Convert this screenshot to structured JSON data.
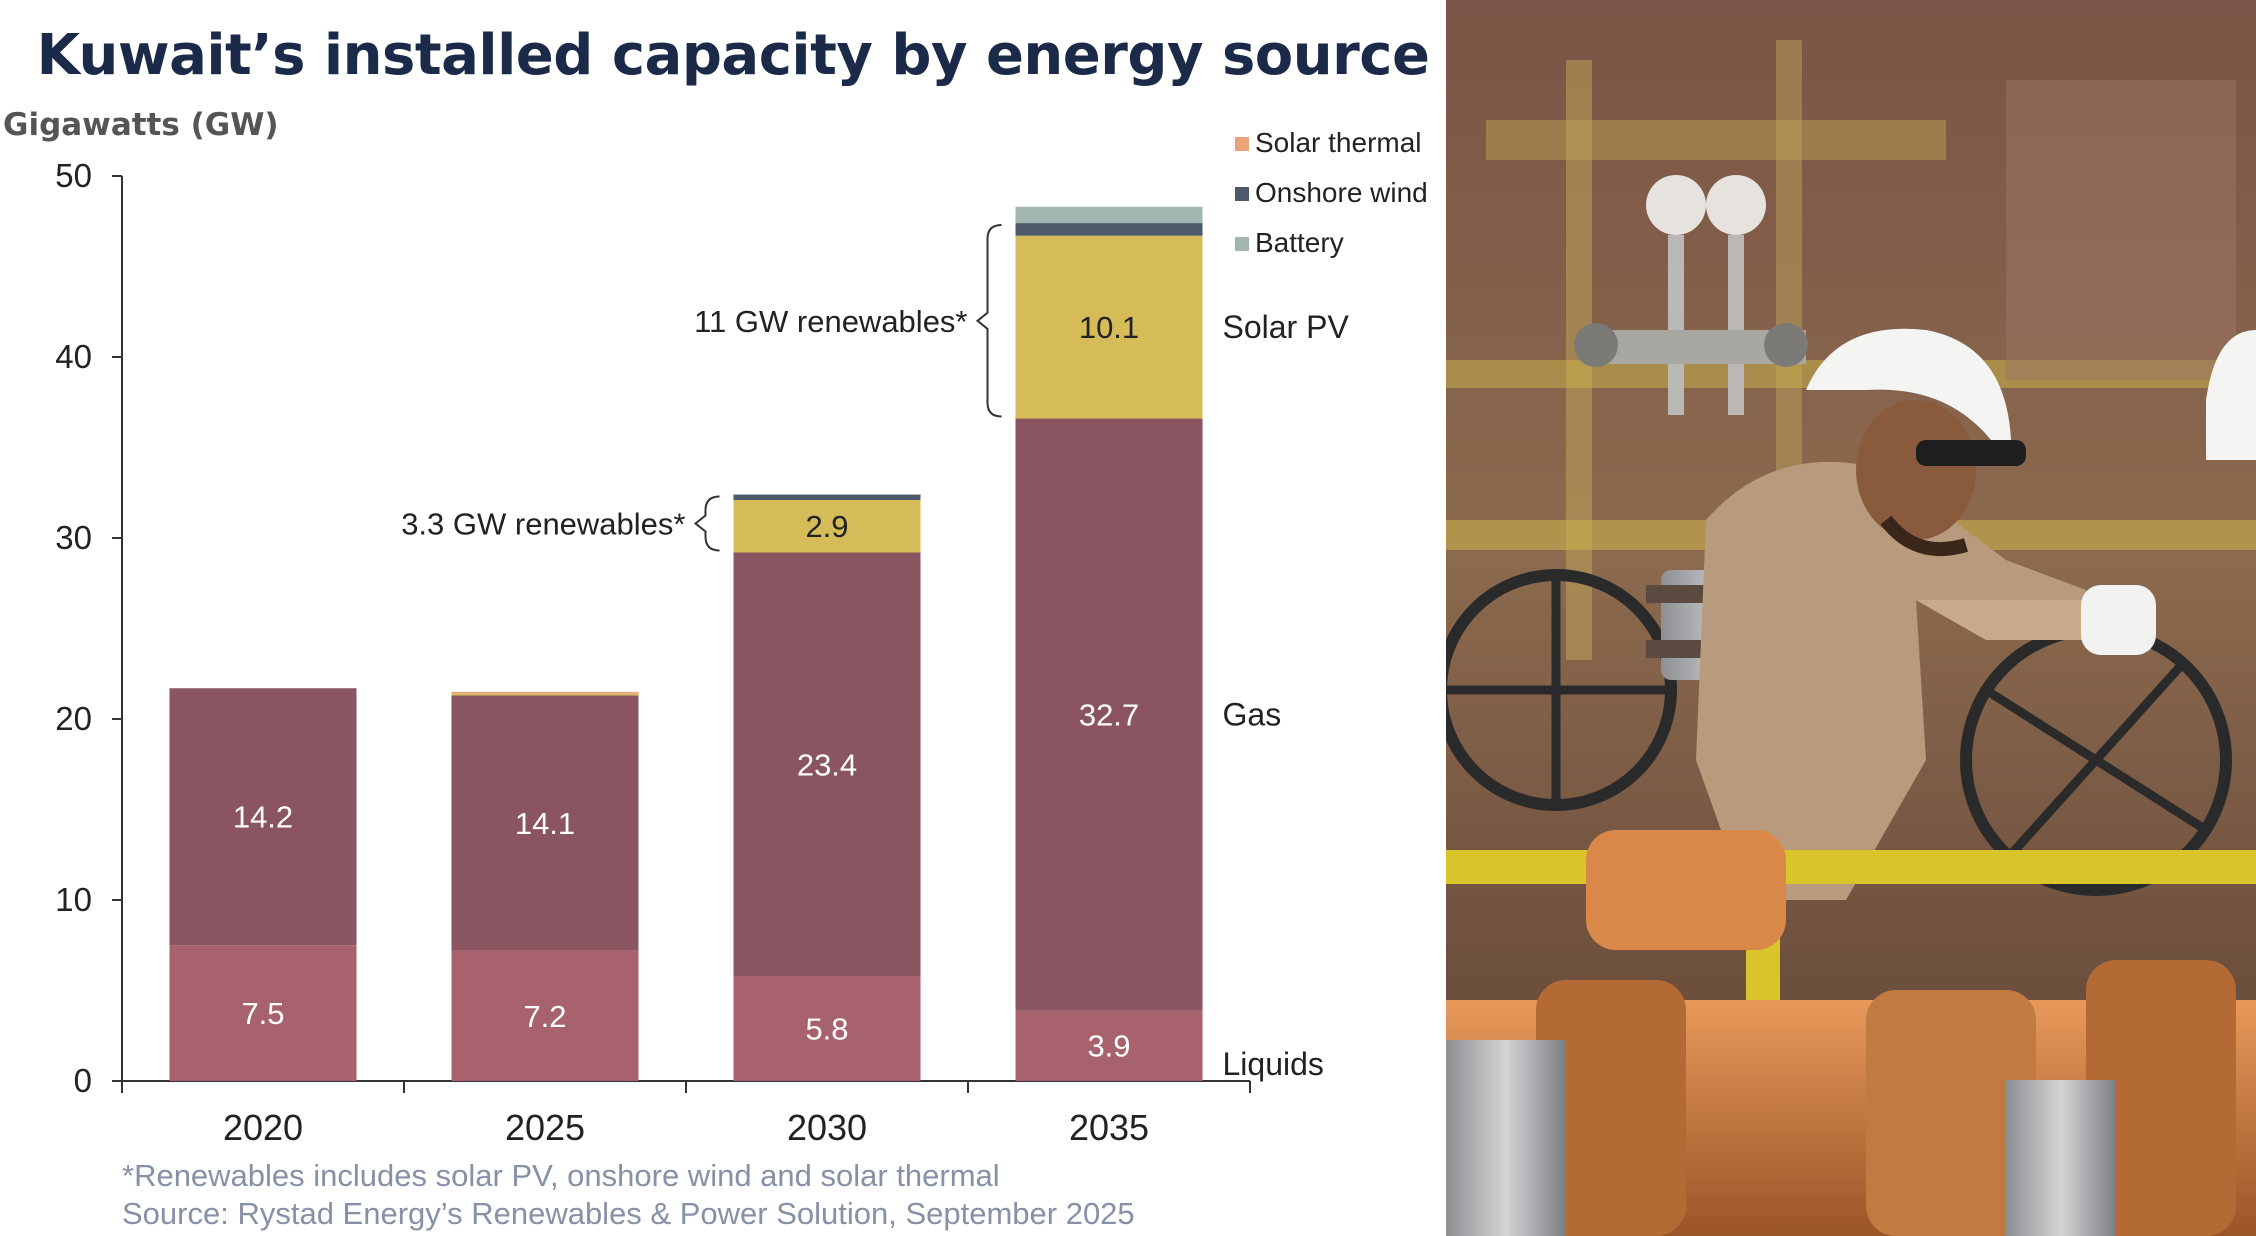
{
  "title": "Kuwait’s installed capacity by energy source",
  "unit_label": "Gigawatts (GW)",
  "footnotes": {
    "renewables_note": "*Renewables includes solar PV, onshore wind and solar thermal",
    "source": "Source: Rystad Energy’s Renewables & Power Solution, September 2025"
  },
  "chart_data": {
    "type": "bar",
    "stacked": true,
    "title": "Kuwait’s installed capacity by energy source",
    "ylabel": "Gigawatts (GW)",
    "xlabel": "",
    "ylim": [
      0,
      50
    ],
    "yticks": [
      0,
      10,
      20,
      30,
      40,
      50
    ],
    "grid": false,
    "legend_position": "top-right",
    "categories": [
      "2020",
      "2025",
      "2030",
      "2035"
    ],
    "series": [
      {
        "name": "Liquids",
        "color": "#a8626e",
        "values": [
          7.5,
          7.2,
          5.8,
          3.9
        ],
        "labels": [
          "7.5",
          "7.2",
          "5.8",
          "3.9"
        ]
      },
      {
        "name": "Gas",
        "color": "#8a5560",
        "values": [
          14.2,
          14.1,
          23.4,
          32.7
        ],
        "labels": [
          "14.2",
          "14.1",
          "23.4",
          "32.7"
        ]
      },
      {
        "name": "Solar PV",
        "color": "#d5bc58",
        "values": [
          0,
          0.1,
          2.9,
          10.1
        ],
        "labels": [
          "",
          "",
          "2.9",
          "10.1"
        ]
      },
      {
        "name": "Solar thermal",
        "color": "#e8a37a",
        "values": [
          0,
          0.1,
          0,
          0
        ],
        "labels": [
          "",
          "",
          "",
          ""
        ]
      },
      {
        "name": "Onshore wind",
        "color": "#4c5a6c",
        "values": [
          0,
          0,
          0.3,
          0.7
        ],
        "labels": [
          "",
          "",
          "",
          ""
        ]
      },
      {
        "name": "Battery",
        "color": "#a3b6b2",
        "values": [
          0,
          0,
          0,
          0.9
        ],
        "labels": [
          "",
          "",
          "",
          ""
        ]
      }
    ],
    "legend": [
      "Solar thermal",
      "Onshore wind",
      "Battery"
    ],
    "series_side_labels": [
      "Solar PV",
      "Gas",
      "Liquids"
    ],
    "annotations": [
      {
        "text": "3.3 GW renewables*",
        "category": "2030"
      },
      {
        "text": "11 GW renewables*",
        "category": "2035"
      }
    ]
  }
}
